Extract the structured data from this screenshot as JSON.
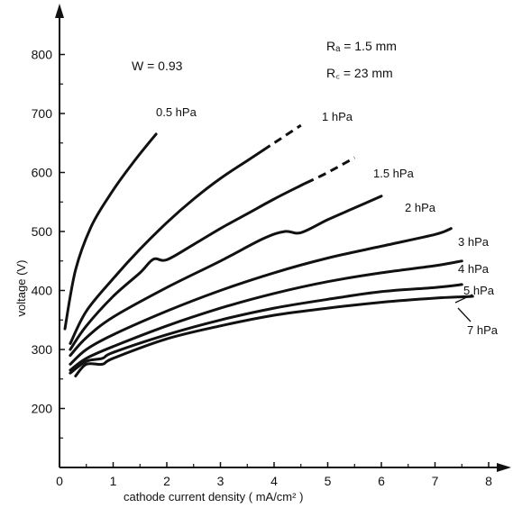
{
  "chart_data": {
    "type": "line",
    "title": "",
    "xlabel": "cathode  current  density   ( mA/cm² )",
    "ylabel": "voltage  (V)",
    "xlim": [
      0,
      8.5
    ],
    "ylim": [
      100,
      900
    ],
    "xticks": [
      "0",
      "1",
      "2",
      "3",
      "4",
      "5",
      "6",
      "7",
      "8"
    ],
    "yticks": [
      "200",
      "300",
      "400",
      "500",
      "600",
      "700",
      "800"
    ],
    "grid": false,
    "legend": "none",
    "annotations": {
      "w": "W = 0.93",
      "ra": "Rₐ = 1.5 mm",
      "rc": "R꜀ = 23 mm"
    },
    "series": [
      {
        "name": "0.5 hPa",
        "x": [
          0.1,
          0.3,
          0.6,
          1.0,
          1.4,
          1.8
        ],
        "y": [
          335,
          435,
          510,
          570,
          620,
          665
        ]
      },
      {
        "name": "1 hPa",
        "x": [
          0.2,
          0.5,
          1.0,
          1.5,
          2.0,
          2.5,
          3.0,
          3.5,
          4.0,
          4.5
        ],
        "y": [
          310,
          365,
          420,
          470,
          515,
          555,
          590,
          620,
          650,
          680
        ],
        "dashed_from_x": 3.8
      },
      {
        "name": "1.5 hPa",
        "x": [
          0.2,
          0.5,
          1.0,
          1.5,
          1.75,
          2.0,
          2.5,
          3.0,
          3.5,
          4.0,
          4.5,
          5.0,
          5.5
        ],
        "y": [
          300,
          340,
          390,
          430,
          453,
          452,
          478,
          505,
          530,
          555,
          578,
          600,
          625
        ],
        "dashed_from_x": 4.6
      },
      {
        "name": "2 hPa",
        "x": [
          0.2,
          0.5,
          1.0,
          2.0,
          3.0,
          3.8,
          4.2,
          4.5,
          5.0,
          5.5,
          6.0
        ],
        "y": [
          290,
          320,
          355,
          405,
          450,
          488,
          500,
          498,
          520,
          540,
          560
        ]
      },
      {
        "name": "3 hPa",
        "x": [
          0.2,
          0.5,
          1.0,
          2.0,
          3.0,
          4.0,
          5.0,
          6.0,
          7.0,
          7.3
        ],
        "y": [
          275,
          300,
          325,
          365,
          400,
          430,
          455,
          475,
          495,
          505
        ]
      },
      {
        "name": "4 hPa",
        "x": [
          0.2,
          0.5,
          1.0,
          2.0,
          3.0,
          4.0,
          5.0,
          6.0,
          7.0,
          7.5
        ],
        "y": [
          265,
          285,
          305,
          340,
          370,
          395,
          415,
          430,
          442,
          450
        ]
      },
      {
        "name": "5 hPa",
        "x": [
          0.2,
          0.5,
          0.8,
          1.0,
          2.0,
          3.0,
          4.0,
          5.0,
          6.0,
          7.0,
          7.5
        ],
        "y": [
          260,
          280,
          285,
          295,
          325,
          350,
          370,
          385,
          398,
          405,
          410
        ]
      },
      {
        "name": "7 hPa",
        "x": [
          0.3,
          0.5,
          0.8,
          1.0,
          2.0,
          3.0,
          4.0,
          5.0,
          6.0,
          7.0,
          7.7
        ],
        "y": [
          255,
          275,
          275,
          285,
          318,
          340,
          358,
          370,
          380,
          387,
          390
        ]
      }
    ],
    "series_labels": [
      "0.5 hPa",
      "1 hPa",
      "1.5 hPa",
      "2 hPa",
      "3 hPa",
      "4 hPa",
      "5 hPa",
      "7 hPa"
    ]
  }
}
